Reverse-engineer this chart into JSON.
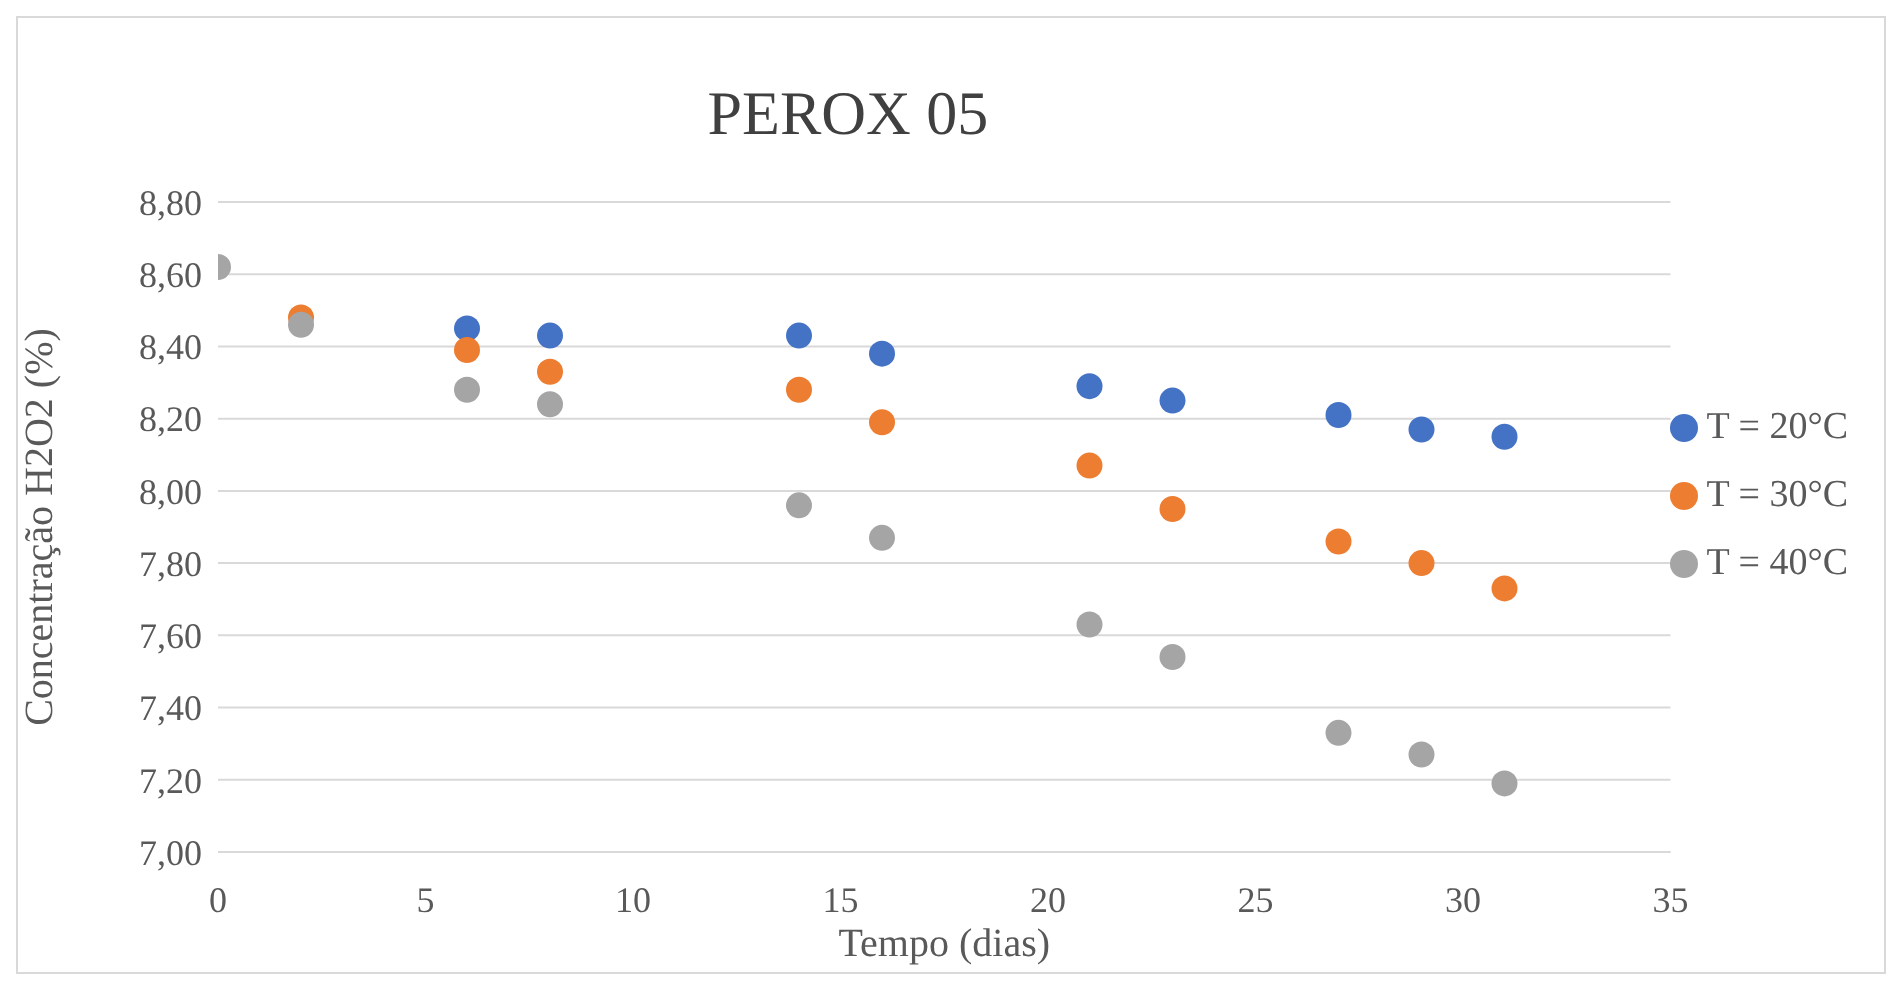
{
  "chart_data": {
    "type": "scatter",
    "title": "PEROX 05",
    "xlabel": "Tempo (dias)",
    "ylabel": "Concentração H2O2 (%)",
    "x": [
      0,
      2,
      6,
      8,
      14,
      16,
      21,
      23,
      27,
      29,
      31
    ],
    "series": [
      {
        "name": "T = 20°C",
        "color": "#4472c4",
        "values": [
          null,
          null,
          8.45,
          8.43,
          8.43,
          8.38,
          8.29,
          8.25,
          8.21,
          8.17,
          8.15
        ]
      },
      {
        "name": "T = 30°C",
        "color": "#ed7d31",
        "values": [
          null,
          8.48,
          8.39,
          8.33,
          8.28,
          8.19,
          8.07,
          7.95,
          7.86,
          7.8,
          7.73
        ]
      },
      {
        "name": "T = 40°C",
        "color": "#a5a5a5",
        "values": [
          8.62,
          8.46,
          8.28,
          8.24,
          7.96,
          7.87,
          7.63,
          7.54,
          7.33,
          7.27,
          7.19
        ]
      }
    ],
    "xlim": [
      0,
      35
    ],
    "xticks": [
      0,
      5,
      10,
      15,
      20,
      25,
      30,
      35
    ],
    "ylim": [
      7,
      8.8
    ],
    "yticks": [
      {
        "value": 7,
        "label": "7,00"
      },
      {
        "value": 7.2,
        "label": "7,20"
      },
      {
        "value": 7.4,
        "label": "7,40"
      },
      {
        "value": 7.6,
        "label": "7,60"
      },
      {
        "value": 7.8,
        "label": "7,80"
      },
      {
        "value": 8,
        "label": "8,00"
      },
      {
        "value": 8.2,
        "label": "8,20"
      },
      {
        "value": 8.4,
        "label": "8,40"
      },
      {
        "value": 8.6,
        "label": "8,60"
      },
      {
        "value": 8.8,
        "label": "8,80"
      }
    ],
    "grid": "y",
    "legend": "right",
    "marker": "circle"
  }
}
